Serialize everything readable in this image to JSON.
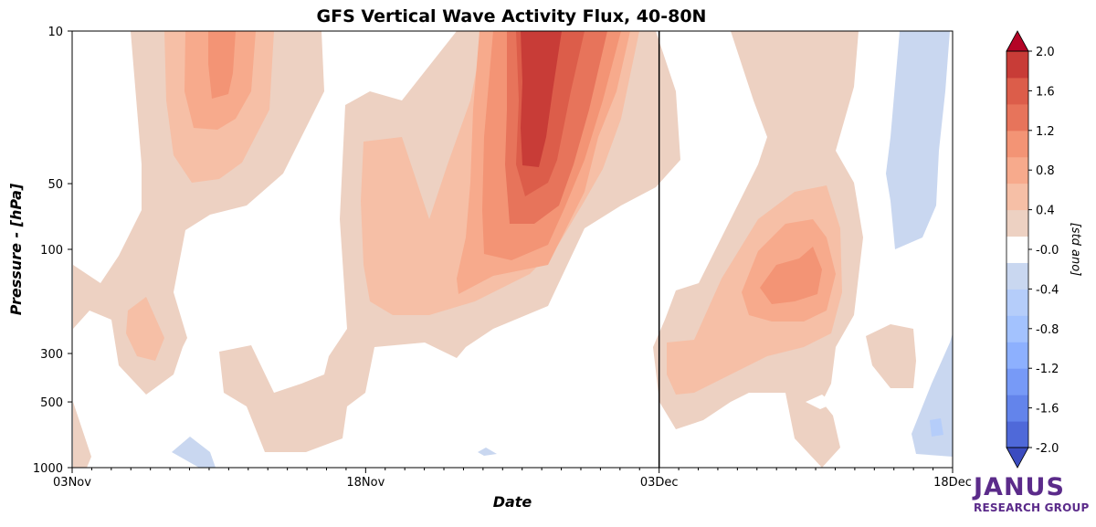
{
  "chart_data": {
    "type": "heatmap",
    "subtype": "filled-contour",
    "title": "GFS Vertical Wave Activity Flux, 40-80N",
    "xlabel": "Date",
    "ylabel": "Pressure - [hPa]",
    "x_ticks": [
      "03Nov",
      "18Nov",
      "03Dec",
      "18Dec"
    ],
    "y_ticks": [
      10,
      50,
      100,
      300,
      500,
      1000
    ],
    "y_scale": "log",
    "y_inverted": true,
    "ylim": [
      1000,
      10
    ],
    "xlim": [
      "03Nov",
      "18Dec"
    ],
    "vertical_marker": "03Dec",
    "colorbar": {
      "label": "[std ano]",
      "levels": [
        -2.0,
        -1.8,
        -1.6,
        -1.4,
        -1.2,
        -1.0,
        -0.8,
        -0.6,
        -0.4,
        -0.2,
        0.2,
        0.4,
        0.6,
        0.8,
        1.0,
        1.2,
        1.4,
        1.6,
        1.8,
        2.0
      ],
      "tick_labels": [
        "2.0",
        "1.6",
        "1.2",
        "0.8",
        "0.4",
        "-0.0",
        "-0.4",
        "-0.8",
        "-1.2",
        "-1.6",
        "-2.0"
      ],
      "colors": [
        "#3b4cc0",
        "#4f69d9",
        "#6384eb",
        "#779af7",
        "#8db0fe",
        "#a3c2fe",
        "#b5cdfa",
        "#c9d7f0",
        "#ffffff",
        "#edd1c2",
        "#f6bfa6",
        "#f7aa8c",
        "#f39475",
        "#e7745b",
        "#dc5d4a",
        "#c83c37",
        "#b40426"
      ]
    },
    "features": [
      {
        "name": "stratospheric maximum",
        "date_range": [
          "26Nov",
          "29Nov"
        ],
        "pressure_range": [
          10,
          45
        ],
        "peak_value": 1.6
      },
      {
        "name": "upper maximum early November",
        "date_range": [
          "09Nov",
          "11Nov"
        ],
        "pressure_range": [
          15,
          25
        ],
        "peak_value": 0.8
      },
      {
        "name": "lower-stratosphere maximum early December",
        "date_range": [
          "08Dec",
          "10Dec"
        ],
        "pressure_range": [
          120,
          170
        ],
        "peak_value": 0.8
      },
      {
        "name": "negative region late December",
        "date_range": [
          "15Dec",
          "18Dec"
        ],
        "pressure_range": [
          10,
          100
        ],
        "peak_value": -0.4
      }
    ]
  },
  "logo": {
    "name": "JANUS",
    "subtitle": "RESEARCH GROUP"
  },
  "colors": {
    "logo": "#5b2b8a",
    "frame": "#000000"
  }
}
